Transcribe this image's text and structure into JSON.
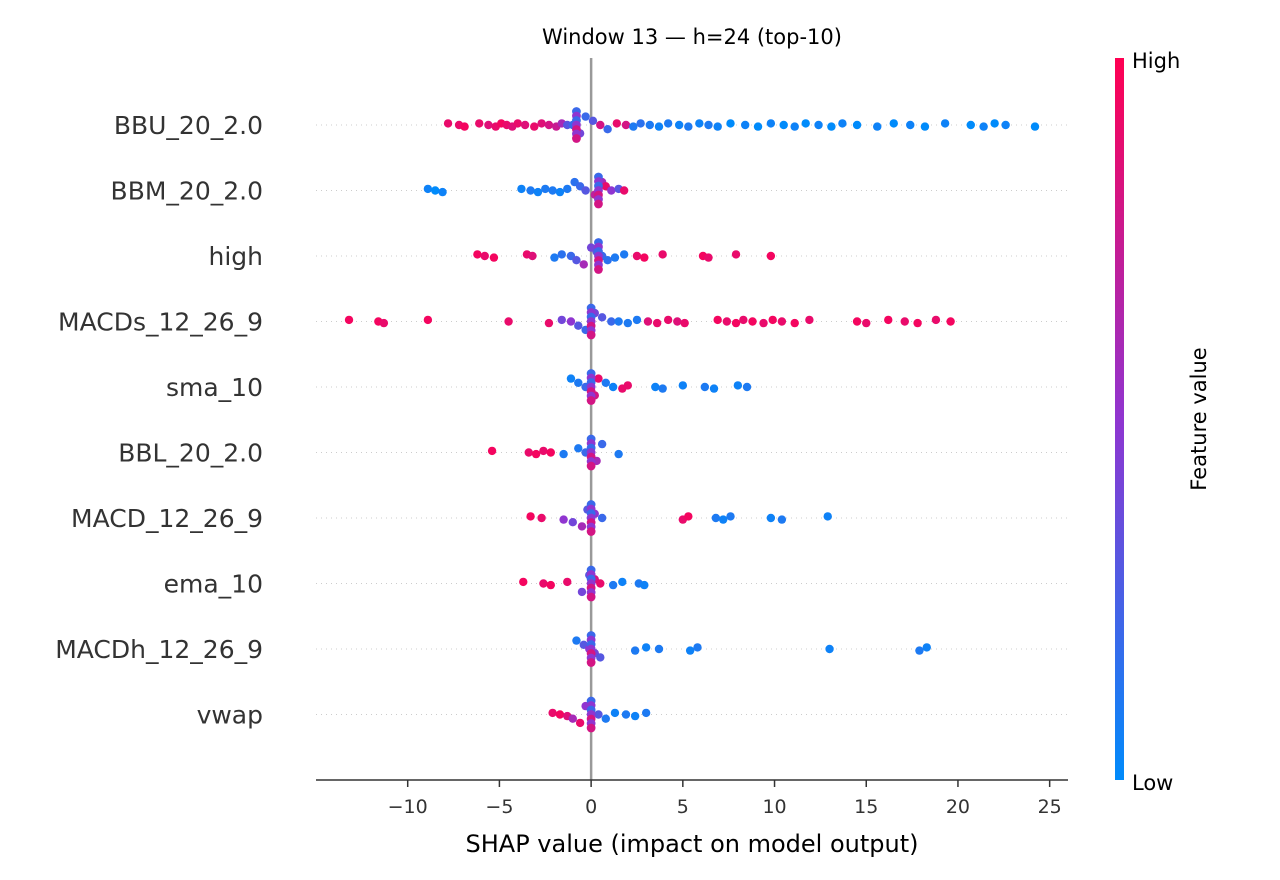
{
  "chart_data": {
    "type": "scatter",
    "subtype": "shap-beeswarm",
    "title": "Window 13 — h=24 (top-10)",
    "xlabel": "SHAP value (impact on model output)",
    "ylabel": "",
    "xlim": [
      -15,
      26
    ],
    "xticks": [
      -10,
      -5,
      0,
      5,
      10,
      15,
      20,
      25
    ],
    "xtick_labels": [
      "−10",
      "−5",
      "0",
      "5",
      "10",
      "15",
      "20",
      "25"
    ],
    "colorbar": {
      "label": "Feature value",
      "high": "High",
      "low": "Low",
      "color_low": "#008bfb",
      "color_high": "#ff0052"
    },
    "features": [
      {
        "name": "BBU_20_2.0",
        "points": [
          [
            -7.8,
            0.9
          ],
          [
            -7.2,
            0.9
          ],
          [
            -6.9,
            0.95
          ],
          [
            -6.1,
            0.9
          ],
          [
            -5.6,
            0.85
          ],
          [
            -5.2,
            0.9
          ],
          [
            -4.9,
            0.95
          ],
          [
            -4.6,
            0.9
          ],
          [
            -4.3,
            0.85
          ],
          [
            -4.0,
            0.9
          ],
          [
            -3.6,
            0.85
          ],
          [
            -3.1,
            0.9
          ],
          [
            -2.7,
            0.85
          ],
          [
            -2.3,
            0.8
          ],
          [
            -1.9,
            0.75
          ],
          [
            -1.6,
            0.6
          ],
          [
            -1.3,
            0.3
          ],
          [
            -1.0,
            0.2
          ],
          [
            -0.8,
            0.5
          ],
          [
            -0.6,
            0.4
          ],
          [
            -0.3,
            0.2
          ],
          [
            0.1,
            0.3
          ],
          [
            0.5,
            0.8
          ],
          [
            0.9,
            0.2
          ],
          [
            1.4,
            0.9
          ],
          [
            1.9,
            0.8
          ],
          [
            2.3,
            0.1
          ],
          [
            2.7,
            0.15
          ],
          [
            3.2,
            0.1
          ],
          [
            3.7,
            0.05
          ],
          [
            4.2,
            0.1
          ],
          [
            4.8,
            0.05
          ],
          [
            5.3,
            0.1
          ],
          [
            5.9,
            0.05
          ],
          [
            6.4,
            0.1
          ],
          [
            6.9,
            0.05
          ],
          [
            7.6,
            0.0
          ],
          [
            8.4,
            0.05
          ],
          [
            9.1,
            0.0
          ],
          [
            9.8,
            0.05
          ],
          [
            10.5,
            0.0
          ],
          [
            11.1,
            0.05
          ],
          [
            11.7,
            0.0
          ],
          [
            12.4,
            0.05
          ],
          [
            13.1,
            0.0
          ],
          [
            13.7,
            0.05
          ],
          [
            14.5,
            0.0
          ],
          [
            15.6,
            0.05
          ],
          [
            16.5,
            0.0
          ],
          [
            17.4,
            0.05
          ],
          [
            18.2,
            0.0
          ],
          [
            19.3,
            0.05
          ],
          [
            20.7,
            0.0
          ],
          [
            21.4,
            0.05
          ],
          [
            22.0,
            0.0
          ],
          [
            22.6,
            0.05
          ],
          [
            24.2,
            0.0
          ]
        ]
      },
      {
        "name": "BBM_20_2.0",
        "points": [
          [
            -8.9,
            0.05
          ],
          [
            -8.5,
            0.0
          ],
          [
            -8.1,
            0.05
          ],
          [
            -3.8,
            0.05
          ],
          [
            -3.3,
            0.1
          ],
          [
            -2.9,
            0.05
          ],
          [
            -2.5,
            0.1
          ],
          [
            -2.1,
            0.1
          ],
          [
            -1.7,
            0.05
          ],
          [
            -1.3,
            0.1
          ],
          [
            -0.9,
            0.15
          ],
          [
            -0.6,
            0.2
          ],
          [
            -0.3,
            0.3
          ],
          [
            0.2,
            0.7
          ],
          [
            0.4,
            0.8
          ],
          [
            0.6,
            0.6
          ],
          [
            0.8,
            0.9
          ],
          [
            1.1,
            0.5
          ],
          [
            1.5,
            0.3
          ],
          [
            1.8,
            0.9
          ]
        ]
      },
      {
        "name": "high",
        "points": [
          [
            -6.2,
            0.95
          ],
          [
            -5.8,
            0.9
          ],
          [
            -5.3,
            0.95
          ],
          [
            -3.5,
            0.9
          ],
          [
            -3.2,
            0.85
          ],
          [
            -2.0,
            0.1
          ],
          [
            -1.6,
            0.15
          ],
          [
            -1.1,
            0.2
          ],
          [
            -0.8,
            0.3
          ],
          [
            -0.4,
            0.6
          ],
          [
            0.0,
            0.4
          ],
          [
            0.3,
            0.3
          ],
          [
            0.6,
            0.2
          ],
          [
            0.9,
            0.15
          ],
          [
            1.3,
            0.1
          ],
          [
            1.8,
            0.1
          ],
          [
            2.5,
            0.9
          ],
          [
            2.9,
            0.95
          ],
          [
            3.9,
            0.9
          ],
          [
            6.1,
            0.95
          ],
          [
            6.4,
            0.9
          ],
          [
            7.9,
            0.9
          ],
          [
            9.8,
            0.95
          ]
        ]
      },
      {
        "name": "MACDs_12_26_9",
        "points": [
          [
            -13.2,
            0.95
          ],
          [
            -11.6,
            0.95
          ],
          [
            -11.3,
            0.9
          ],
          [
            -8.9,
            0.95
          ],
          [
            -4.5,
            0.9
          ],
          [
            -2.3,
            0.9
          ],
          [
            -1.6,
            0.4
          ],
          [
            -1.1,
            0.5
          ],
          [
            -0.7,
            0.3
          ],
          [
            -0.3,
            0.2
          ],
          [
            0.2,
            0.4
          ],
          [
            0.6,
            0.3
          ],
          [
            1.1,
            0.2
          ],
          [
            1.5,
            0.1
          ],
          [
            2.0,
            0.1
          ],
          [
            2.5,
            0.1
          ],
          [
            3.1,
            0.85
          ],
          [
            3.6,
            0.9
          ],
          [
            4.2,
            0.9
          ],
          [
            4.7,
            0.85
          ],
          [
            5.1,
            0.9
          ],
          [
            6.9,
            0.95
          ],
          [
            7.4,
            0.9
          ],
          [
            7.9,
            0.95
          ],
          [
            8.3,
            0.9
          ],
          [
            8.8,
            0.95
          ],
          [
            9.4,
            0.9
          ],
          [
            9.9,
            0.95
          ],
          [
            10.4,
            0.9
          ],
          [
            11.1,
            0.95
          ],
          [
            11.9,
            0.9
          ],
          [
            14.5,
            0.95
          ],
          [
            15.0,
            0.9
          ],
          [
            16.2,
            0.95
          ],
          [
            17.1,
            0.9
          ],
          [
            17.8,
            0.95
          ],
          [
            18.8,
            0.9
          ],
          [
            19.6,
            0.95
          ]
        ]
      },
      {
        "name": "sma_10",
        "points": [
          [
            -1.1,
            0.05
          ],
          [
            -0.7,
            0.1
          ],
          [
            -0.3,
            0.2
          ],
          [
            0.0,
            0.5
          ],
          [
            0.2,
            0.8
          ],
          [
            0.4,
            0.9
          ],
          [
            0.8,
            0.1
          ],
          [
            1.2,
            0.05
          ],
          [
            1.7,
            0.9
          ],
          [
            2.0,
            0.9
          ],
          [
            3.5,
            0.05
          ],
          [
            3.9,
            0.1
          ],
          [
            5.0,
            0.05
          ],
          [
            6.2,
            0.1
          ],
          [
            6.7,
            0.05
          ],
          [
            8.0,
            0.05
          ],
          [
            8.5,
            0.1
          ]
        ]
      },
      {
        "name": "BBL_20_2.0",
        "points": [
          [
            -5.4,
            0.95
          ],
          [
            -3.4,
            0.9
          ],
          [
            -3.0,
            0.95
          ],
          [
            -2.6,
            0.9
          ],
          [
            -2.2,
            0.95
          ],
          [
            -1.5,
            0.1
          ],
          [
            -0.7,
            0.1
          ],
          [
            -0.3,
            0.2
          ],
          [
            0.0,
            0.4
          ],
          [
            0.3,
            0.6
          ],
          [
            0.6,
            0.2
          ],
          [
            1.5,
            0.1
          ]
        ]
      },
      {
        "name": "MACD_12_26_9",
        "points": [
          [
            -3.3,
            0.95
          ],
          [
            -2.7,
            0.9
          ],
          [
            -1.5,
            0.5
          ],
          [
            -1.0,
            0.4
          ],
          [
            -0.5,
            0.6
          ],
          [
            -0.2,
            0.3
          ],
          [
            0.2,
            0.5
          ],
          [
            0.6,
            0.2
          ],
          [
            5.0,
            0.9
          ],
          [
            5.3,
            0.95
          ],
          [
            6.8,
            0.1
          ],
          [
            7.2,
            0.05
          ],
          [
            7.6,
            0.1
          ],
          [
            9.8,
            0.05
          ],
          [
            10.4,
            0.1
          ],
          [
            12.9,
            0.05
          ]
        ]
      },
      {
        "name": "ema_10",
        "points": [
          [
            -3.7,
            0.95
          ],
          [
            -2.6,
            0.9
          ],
          [
            -2.2,
            0.95
          ],
          [
            -1.3,
            0.9
          ],
          [
            -0.5,
            0.4
          ],
          [
            -0.1,
            0.3
          ],
          [
            0.2,
            0.8
          ],
          [
            0.5,
            0.9
          ],
          [
            1.2,
            0.1
          ],
          [
            1.7,
            0.05
          ],
          [
            2.6,
            0.1
          ],
          [
            2.9,
            0.05
          ]
        ]
      },
      {
        "name": "MACDh_12_26_9",
        "points": [
          [
            -0.8,
            0.1
          ],
          [
            -0.4,
            0.3
          ],
          [
            -0.1,
            0.5
          ],
          [
            0.2,
            0.4
          ],
          [
            0.5,
            0.3
          ],
          [
            2.4,
            0.1
          ],
          [
            3.0,
            0.05
          ],
          [
            3.7,
            0.1
          ],
          [
            5.4,
            0.05
          ],
          [
            5.8,
            0.1
          ],
          [
            13.0,
            0.05
          ],
          [
            17.9,
            0.1
          ],
          [
            18.3,
            0.05
          ]
        ]
      },
      {
        "name": "vwap",
        "points": [
          [
            -2.1,
            0.9
          ],
          [
            -1.7,
            0.95
          ],
          [
            -1.3,
            0.85
          ],
          [
            -1.0,
            0.6
          ],
          [
            -0.6,
            0.9
          ],
          [
            -0.3,
            0.5
          ],
          [
            0.0,
            0.4
          ],
          [
            0.4,
            0.3
          ],
          [
            0.8,
            0.1
          ],
          [
            1.3,
            0.05
          ],
          [
            1.9,
            0.1
          ],
          [
            2.4,
            0.05
          ],
          [
            3.0,
            0.1
          ]
        ]
      }
    ]
  }
}
